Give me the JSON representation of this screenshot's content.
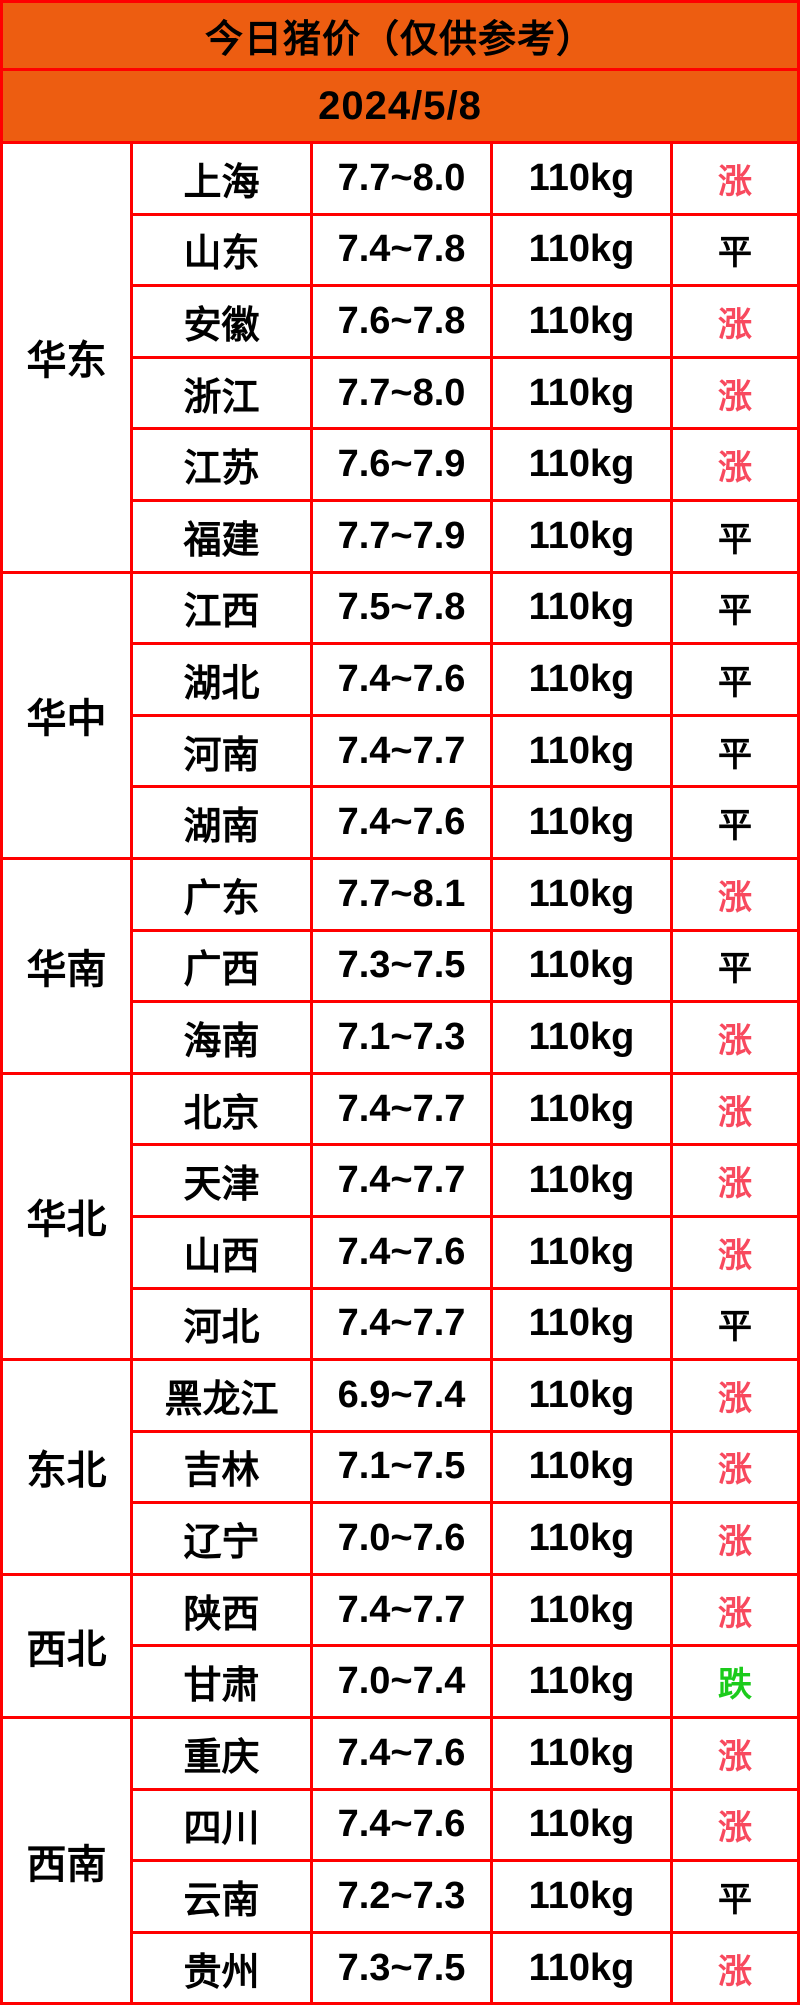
{
  "chart_data": {
    "type": "table",
    "title": "今日猪价（仅供参考）",
    "date": "2024/5/8",
    "columns": [
      "region",
      "province",
      "price_range",
      "weight",
      "trend"
    ],
    "groups": [
      {
        "region": "华东",
        "rows": [
          {
            "province": "上海",
            "price_range": "7.7~8.0",
            "weight": "110kg",
            "trend": "涨",
            "trend_type": "up"
          },
          {
            "province": "山东",
            "price_range": "7.4~7.8",
            "weight": "110kg",
            "trend": "平",
            "trend_type": "flat"
          },
          {
            "province": "安徽",
            "price_range": "7.6~7.8",
            "weight": "110kg",
            "trend": "涨",
            "trend_type": "up"
          },
          {
            "province": "浙江",
            "price_range": "7.7~8.0",
            "weight": "110kg",
            "trend": "涨",
            "trend_type": "up"
          },
          {
            "province": "江苏",
            "price_range": "7.6~7.9",
            "weight": "110kg",
            "trend": "涨",
            "trend_type": "up"
          },
          {
            "province": "福建",
            "price_range": "7.7~7.9",
            "weight": "110kg",
            "trend": "平",
            "trend_type": "flat"
          }
        ]
      },
      {
        "region": "华中",
        "rows": [
          {
            "province": "江西",
            "price_range": "7.5~7.8",
            "weight": "110kg",
            "trend": "平",
            "trend_type": "flat"
          },
          {
            "province": "湖北",
            "price_range": "7.4~7.6",
            "weight": "110kg",
            "trend": "平",
            "trend_type": "flat"
          },
          {
            "province": "河南",
            "price_range": "7.4~7.7",
            "weight": "110kg",
            "trend": "平",
            "trend_type": "flat"
          },
          {
            "province": "湖南",
            "price_range": "7.4~7.6",
            "weight": "110kg",
            "trend": "平",
            "trend_type": "flat"
          }
        ]
      },
      {
        "region": "华南",
        "rows": [
          {
            "province": "广东",
            "price_range": "7.7~8.1",
            "weight": "110kg",
            "trend": "涨",
            "trend_type": "up"
          },
          {
            "province": "广西",
            "price_range": "7.3~7.5",
            "weight": "110kg",
            "trend": "平",
            "trend_type": "flat"
          },
          {
            "province": "海南",
            "price_range": "7.1~7.3",
            "weight": "110kg",
            "trend": "涨",
            "trend_type": "up"
          }
        ]
      },
      {
        "region": "华北",
        "rows": [
          {
            "province": "北京",
            "price_range": "7.4~7.7",
            "weight": "110kg",
            "trend": "涨",
            "trend_type": "up"
          },
          {
            "province": "天津",
            "price_range": "7.4~7.7",
            "weight": "110kg",
            "trend": "涨",
            "trend_type": "up"
          },
          {
            "province": "山西",
            "price_range": "7.4~7.6",
            "weight": "110kg",
            "trend": "涨",
            "trend_type": "up"
          },
          {
            "province": "河北",
            "price_range": "7.4~7.7",
            "weight": "110kg",
            "trend": "平",
            "trend_type": "flat"
          }
        ]
      },
      {
        "region": "东北",
        "rows": [
          {
            "province": "黑龙江",
            "price_range": "6.9~7.4",
            "weight": "110kg",
            "trend": "涨",
            "trend_type": "up"
          },
          {
            "province": "吉林",
            "price_range": "7.1~7.5",
            "weight": "110kg",
            "trend": "涨",
            "trend_type": "up"
          },
          {
            "province": "辽宁",
            "price_range": "7.0~7.6",
            "weight": "110kg",
            "trend": "涨",
            "trend_type": "up"
          }
        ]
      },
      {
        "region": "西北",
        "rows": [
          {
            "province": "陕西",
            "price_range": "7.4~7.7",
            "weight": "110kg",
            "trend": "涨",
            "trend_type": "up"
          },
          {
            "province": "甘肃",
            "price_range": "7.0~7.4",
            "weight": "110kg",
            "trend": "跌",
            "trend_type": "down"
          }
        ]
      },
      {
        "region": "西南",
        "rows": [
          {
            "province": "重庆",
            "price_range": "7.4~7.6",
            "weight": "110kg",
            "trend": "涨",
            "trend_type": "up"
          },
          {
            "province": "四川",
            "price_range": "7.4~7.6",
            "weight": "110kg",
            "trend": "涨",
            "trend_type": "up"
          },
          {
            "province": "云南",
            "price_range": "7.2~7.3",
            "weight": "110kg",
            "trend": "平",
            "trend_type": "flat"
          },
          {
            "province": "贵州",
            "price_range": "7.3~7.5",
            "weight": "110kg",
            "trend": "涨",
            "trend_type": "up"
          }
        ]
      }
    ]
  },
  "colors": {
    "header-orange": "#ED5D11",
    "border-red": "#FF0000",
    "up-pink": "#F8495E",
    "down-green": "#1BCB1B",
    "flat-black": "#000000"
  }
}
